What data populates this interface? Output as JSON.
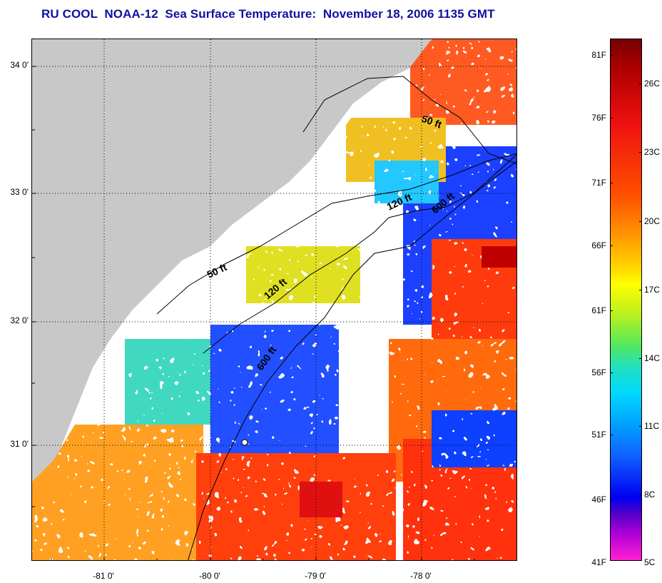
{
  "title": "RU COOL  NOAA-12  Sea Surface Temperature:  November 18, 2006 1135 GMT",
  "axes": {
    "lat_labels": [
      "34 0'",
      "33 0'",
      "32 0'",
      "31 0'"
    ],
    "lon_labels": [
      "-81 0'",
      "-80 0'",
      "-79 0'",
      "-78 0'"
    ]
  },
  "contours": {
    "labels": [
      "50 ft",
      "120 ft",
      "600 ft",
      "50 ft",
      "120 ft",
      "600 ft"
    ]
  },
  "colorbar": {
    "fahrenheit": [
      "81F",
      "76F",
      "71F",
      "66F",
      "61F",
      "56F",
      "51F",
      "46F",
      "41F"
    ],
    "celsius": [
      "26C",
      "23C",
      "20C",
      "17C",
      "14C",
      "11C",
      "8C",
      "5C"
    ]
  },
  "colors": {
    "land": "#c8c8c8",
    "no_data": "#ffffff",
    "title": "#1010a0"
  }
}
